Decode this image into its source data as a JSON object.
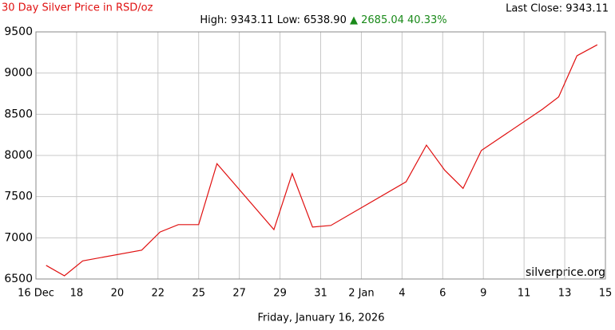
{
  "chart_data": {
    "type": "line",
    "title": "30 Day Silver Price in RSD/oz",
    "last_close": "Last Close: 9343.11",
    "summary": "High: 9343.11 Low: 6538.90",
    "change": "▲ 2685.04 40.33%",
    "watermark": "silverprice.org",
    "xlabel": "Friday, January 16, 2026",
    "xlim": [
      0,
      28
    ],
    "xticks": [
      {
        "value": 0,
        "label": "16 Dec"
      },
      {
        "value": 2,
        "label": "18"
      },
      {
        "value": 4,
        "label": "20"
      },
      {
        "value": 6,
        "label": "22"
      },
      {
        "value": 8,
        "label": "25"
      },
      {
        "value": 10,
        "label": "27"
      },
      {
        "value": 12,
        "label": "29"
      },
      {
        "value": 14,
        "label": "31"
      },
      {
        "value": 16,
        "label": "2 Jan"
      },
      {
        "value": 18,
        "label": "4"
      },
      {
        "value": 20,
        "label": "6"
      },
      {
        "value": 22,
        "label": "9"
      },
      {
        "value": 24,
        "label": "11"
      },
      {
        "value": 26,
        "label": "13"
      },
      {
        "value": 28,
        "label": "15"
      }
    ],
    "ylim": [
      6500,
      9500
    ],
    "yticks": [
      6500,
      7000,
      7500,
      8000,
      8500,
      9000,
      9500
    ],
    "grid": true,
    "series": [
      {
        "color": "#e01010",
        "x": [
          0.5,
          1.4,
          2.3,
          5.2,
          6.1,
          7.0,
          8.0,
          8.9,
          11.7,
          12.6,
          13.6,
          14.5,
          18.2,
          19.2,
          20.1,
          21.0,
          21.9,
          24.9,
          25.7,
          26.6,
          27.6
        ],
        "values": [
          6665,
          6538.9,
          6720,
          6850,
          7070,
          7160,
          7160,
          7900,
          7100,
          7780,
          7130,
          7150,
          7680,
          8125,
          7820,
          7600,
          8060,
          8560,
          8710,
          9210,
          9343.11
        ]
      }
    ]
  }
}
